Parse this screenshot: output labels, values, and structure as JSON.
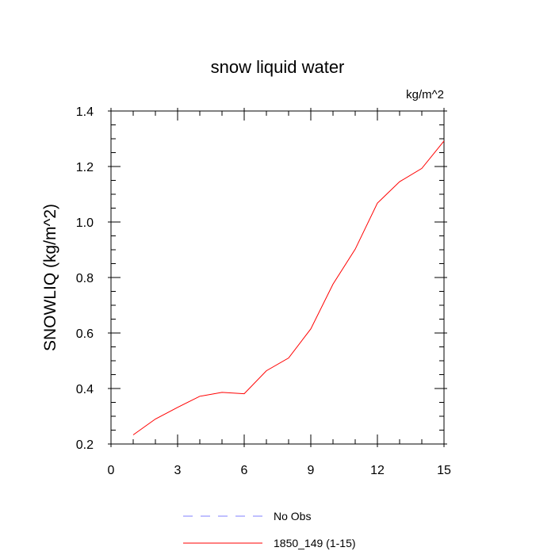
{
  "chart_data": {
    "type": "line",
    "title": "snow liquid water",
    "units_label": "kg/m^2",
    "xlabel": "",
    "ylabel": "SNOWLIQ  (kg/m^2)",
    "xlim": [
      0,
      15
    ],
    "ylim": [
      0.2,
      1.4
    ],
    "x_ticks": [
      0,
      3,
      6,
      9,
      12,
      15
    ],
    "x_tick_labels": [
      "0",
      "3",
      "6",
      "9",
      "12",
      "15"
    ],
    "y_ticks": [
      0.2,
      0.4,
      0.6,
      0.8,
      1.0,
      1.2,
      1.4
    ],
    "y_tick_labels": [
      "0.2",
      "0.4",
      "0.6",
      "0.8",
      "1.0",
      "1.2",
      "1.4"
    ],
    "grid": false,
    "legend_position": "bottom",
    "series": [
      {
        "name": "1850_149 (1-15)",
        "color": "#ff0000",
        "dash": "solid",
        "x": [
          1,
          2,
          3,
          4,
          5,
          6,
          7,
          8,
          9,
          10,
          11,
          12,
          13,
          14,
          15
        ],
        "y": [
          0.233,
          0.29,
          0.332,
          0.372,
          0.386,
          0.381,
          0.464,
          0.51,
          0.615,
          0.776,
          0.902,
          1.068,
          1.145,
          1.193,
          1.292
        ]
      }
    ],
    "legend": [
      {
        "label": "No Obs",
        "color": "#8080ff",
        "dash": "dashed",
        "icon": "dashed-line"
      },
      {
        "label": "1850_149 (1-15)",
        "color": "#ff0000",
        "dash": "solid",
        "icon": "solid-line"
      }
    ]
  }
}
